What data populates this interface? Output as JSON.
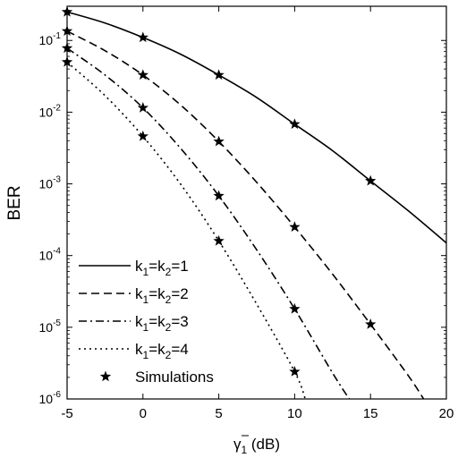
{
  "chart_data": {
    "type": "line",
    "title": "",
    "xlabel": {
      "symbol": "γ",
      "sub": "1",
      "unit": " (dB)"
    },
    "ylabel": "BER",
    "xlim": [
      -5,
      20
    ],
    "ylim": [
      1e-06,
      0.3
    ],
    "yscale": "log",
    "grid": false,
    "legend_position": "bottom-left",
    "x_ticks": [
      "-5",
      "0",
      "5",
      "10",
      "15",
      "20"
    ],
    "y_ticks": [
      {
        "value": 1e-06,
        "base": "10",
        "exp": "-6"
      },
      {
        "value": 1e-05,
        "base": "10",
        "exp": "-5"
      },
      {
        "value": 0.0001,
        "base": "10",
        "exp": "-4"
      },
      {
        "value": 0.001,
        "base": "10",
        "exp": "-3"
      },
      {
        "value": 0.01,
        "base": "10",
        "exp": "-2"
      },
      {
        "value": 0.1,
        "base": "10",
        "exp": "-1"
      }
    ],
    "series": [
      {
        "name": "k1=k2=1",
        "legend": {
          "a": "k",
          "sa": "1",
          "b": "=k",
          "sb": "2",
          "c": "=1"
        },
        "dash": "solid",
        "x": [
          -5,
          -2.5,
          0,
          2.5,
          5,
          7.5,
          10,
          12.5,
          15,
          17.5,
          20
        ],
        "y": [
          0.25,
          0.175,
          0.11,
          0.064,
          0.033,
          0.016,
          0.0068,
          0.0029,
          0.0011,
          0.00042,
          0.00015
        ]
      },
      {
        "name": "k1=k2=2",
        "legend": {
          "a": "k",
          "sa": "1",
          "b": "=k",
          "sb": "2",
          "c": "=2"
        },
        "dash": "dashed",
        "x": [
          -5,
          -2.5,
          0,
          2.5,
          5,
          7.5,
          10,
          12.5,
          15,
          17.5,
          18.5
        ],
        "y": [
          0.135,
          0.072,
          0.033,
          0.0125,
          0.0039,
          0.00105,
          0.00025,
          5.5e-05,
          1.1e-05,
          2.1e-06,
          1e-06
        ]
      },
      {
        "name": "k1=k2=3",
        "legend": {
          "a": "k",
          "sa": "1",
          "b": "=k",
          "sb": "2",
          "c": "=3"
        },
        "dash": "dashdot",
        "x": [
          -5,
          -2.5,
          0,
          2.5,
          5,
          7.5,
          10,
          12.5,
          13.6
        ],
        "y": [
          0.078,
          0.033,
          0.0115,
          0.0031,
          0.00068,
          0.00012,
          1.8e-05,
          2.3e-06,
          1e-06
        ]
      },
      {
        "name": "k1=k2=4",
        "legend": {
          "a": "k",
          "sa": "1",
          "b": "=k",
          "sb": "2",
          "c": "=4"
        },
        "dash": "dotted",
        "x": [
          -5,
          -2.5,
          0,
          2.5,
          5,
          7.5,
          10,
          10.7
        ],
        "y": [
          0.05,
          0.017,
          0.0046,
          0.00098,
          0.00016,
          2.1e-05,
          2.4e-06,
          1e-06
        ]
      },
      {
        "name": "Simulations",
        "legend": {
          "a": "Simulations",
          "sa": "",
          "b": "",
          "sb": "",
          "c": ""
        },
        "dash": "none",
        "marker": "star",
        "points": [
          {
            "x": -5,
            "y": 0.25
          },
          {
            "x": 0,
            "y": 0.11
          },
          {
            "x": 5,
            "y": 0.033
          },
          {
            "x": 10,
            "y": 0.0068
          },
          {
            "x": 15,
            "y": 0.0011
          },
          {
            "x": -5,
            "y": 0.135
          },
          {
            "x": 0,
            "y": 0.033
          },
          {
            "x": 5,
            "y": 0.0039
          },
          {
            "x": 10,
            "y": 0.00025
          },
          {
            "x": 15,
            "y": 1.1e-05
          },
          {
            "x": -5,
            "y": 0.078
          },
          {
            "x": 0,
            "y": 0.0115
          },
          {
            "x": 5,
            "y": 0.00068
          },
          {
            "x": 10,
            "y": 1.8e-05
          },
          {
            "x": -5,
            "y": 0.05
          },
          {
            "x": 0,
            "y": 0.0046
          },
          {
            "x": 5,
            "y": 0.00016
          },
          {
            "x": 10,
            "y": 2.4e-06
          }
        ]
      }
    ]
  }
}
